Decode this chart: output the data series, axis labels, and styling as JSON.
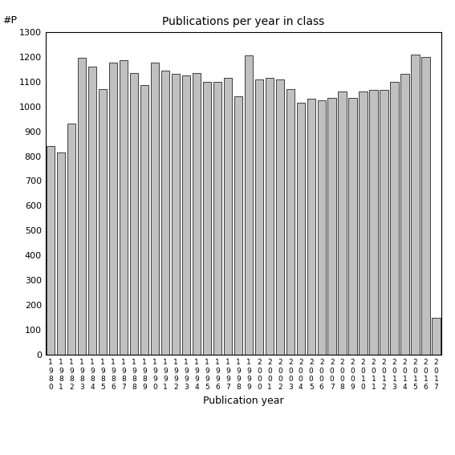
{
  "title": "Publications per year in class",
  "xlabel": "Publication year",
  "ylabel": "#P",
  "bar_color": "#c0c0c0",
  "edge_color": "#000000",
  "ylim": [
    0,
    1300
  ],
  "yticks": [
    0,
    100,
    200,
    300,
    400,
    500,
    600,
    700,
    800,
    900,
    1000,
    1100,
    1200,
    1300
  ],
  "years": [
    1980,
    1981,
    1982,
    1983,
    1984,
    1985,
    1986,
    1987,
    1988,
    1989,
    1990,
    1991,
    1992,
    1993,
    1994,
    1995,
    1996,
    1997,
    1998,
    1999,
    2000,
    2001,
    2002,
    2003,
    2004,
    2005,
    2006,
    2007,
    2008,
    2009,
    2010,
    2011,
    2012,
    2013,
    2014,
    2015,
    2016,
    2017
  ],
  "values": [
    840,
    815,
    930,
    1195,
    1160,
    1070,
    1175,
    1185,
    1135,
    1085,
    1175,
    1145,
    1130,
    1125,
    1135,
    1100,
    1100,
    1115,
    1040,
    1205,
    1110,
    1115,
    1110,
    1070,
    1015,
    1030,
    1025,
    1035,
    1060,
    1035,
    1060,
    1065,
    1065,
    1100,
    1130,
    1210,
    1200,
    150
  ]
}
